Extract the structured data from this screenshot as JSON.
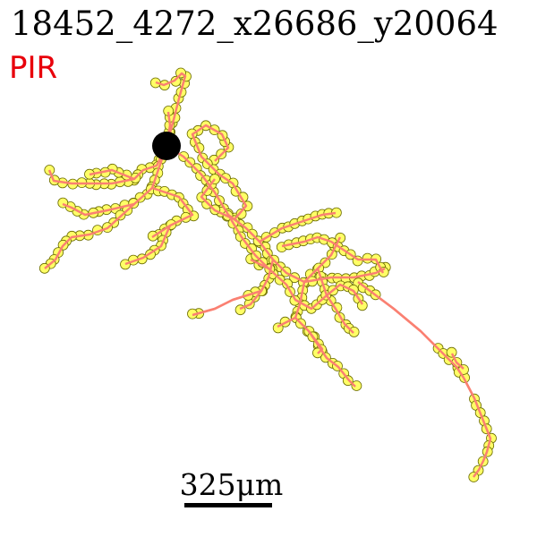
{
  "title": "18452_4272_x26686_y20064",
  "region": "PIR",
  "scale_bar": {
    "label": "325μm",
    "length_um": 325
  },
  "colors": {
    "region_text": "#e8000b",
    "trace": "#fa8072",
    "node_fill": "#ffff66",
    "node_stroke": "#6b6b00",
    "soma": "#000000"
  }
}
